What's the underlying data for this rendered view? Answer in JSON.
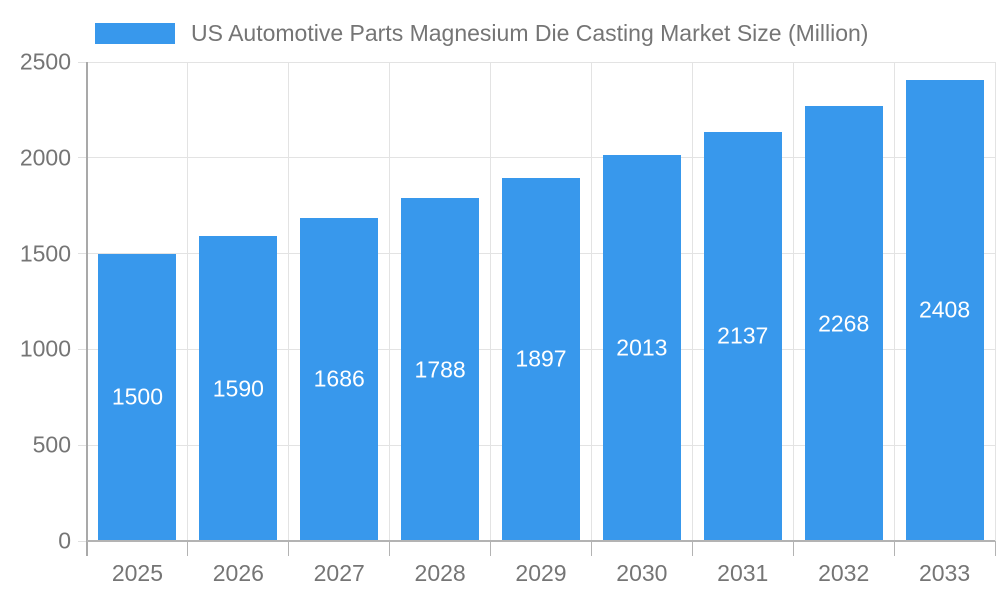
{
  "legend": {
    "label": "US Automotive Parts Magnesium Die Casting Market Size (Million)"
  },
  "chart_data": {
    "type": "bar",
    "title": "US Automotive Parts Magnesium Die Casting Market Size (Million)",
    "categories": [
      "2025",
      "2026",
      "2027",
      "2028",
      "2029",
      "2030",
      "2031",
      "2032",
      "2033"
    ],
    "values": [
      1500,
      1590,
      1686,
      1788,
      1897,
      2013,
      2137,
      2268,
      2408
    ],
    "xlabel": "",
    "ylabel": "",
    "ylim": [
      0,
      2500
    ],
    "yticks": [
      0,
      500,
      1000,
      1500,
      2000,
      2500
    ],
    "grid": true,
    "legend_position": "top-left",
    "colors": {
      "bar": "#3898ec",
      "value_label": "#ffffff",
      "axis_text": "#757575",
      "gridline": "#e3e3e3",
      "axis_line": "#a9a9a9"
    }
  }
}
